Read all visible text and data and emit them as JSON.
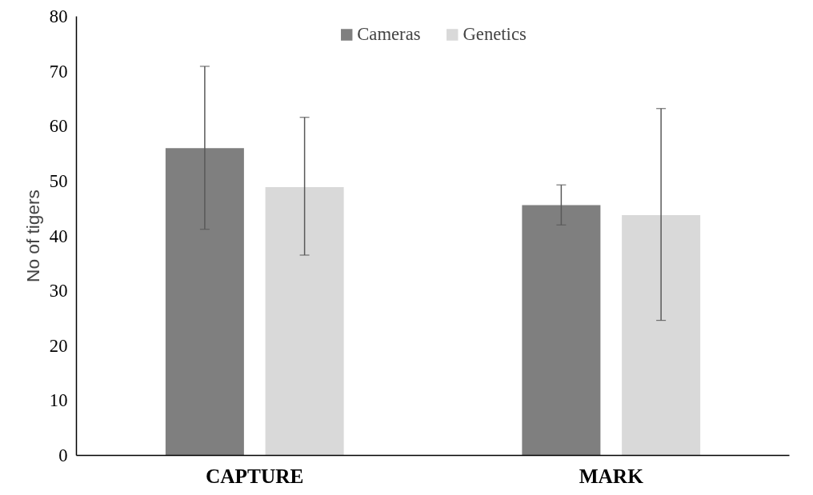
{
  "chart_data": {
    "type": "bar",
    "ylabel": "No of tigers",
    "categories": [
      "CAPTURE",
      "MARK"
    ],
    "series": [
      {
        "name": "Cameras",
        "color": "#7f7f7f",
        "values": [
          56.0,
          45.6
        ],
        "errors": [
          [
            41.2,
            70.9
          ],
          [
            42.0,
            49.3
          ]
        ]
      },
      {
        "name": "Genetics",
        "color": "#d9d9d9",
        "values": [
          48.9,
          43.8
        ],
        "errors": [
          [
            36.5,
            61.6
          ],
          [
            24.6,
            63.2
          ]
        ]
      }
    ],
    "ylim": [
      0,
      80
    ],
    "yticks": [
      0,
      10,
      20,
      30,
      40,
      50,
      60,
      70,
      80
    ],
    "grid": false,
    "legend": "top"
  }
}
